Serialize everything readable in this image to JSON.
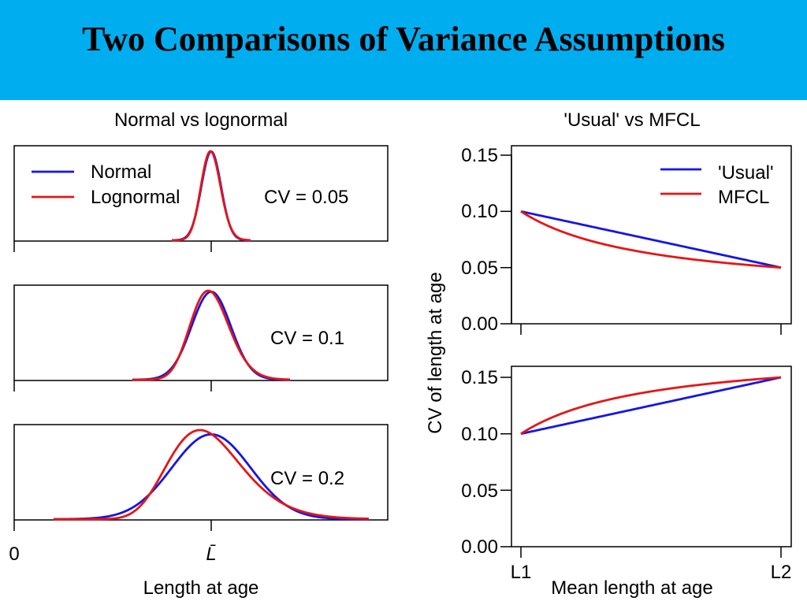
{
  "slide": {
    "title": "Two Comparisons of Variance Assumptions"
  },
  "colors": {
    "banner": "#00AEEF",
    "series_blue": "#1515E6",
    "series_red": "#E61515"
  },
  "chart_data": [
    {
      "type": "line",
      "id": "left-figure",
      "title": "Normal vs lognormal",
      "xlabel": "Length at age",
      "x_tick_labels": [
        "0",
        "L̄"
      ],
      "legend": [
        "Normal",
        "Lognormal"
      ],
      "legend_position": "top-left",
      "mean_length": 1.0,
      "xlim": [
        0,
        1.95
      ],
      "panels": [
        {
          "label": "CV = 0.05",
          "cv": 0.05
        },
        {
          "label": "CV = 0.1",
          "cv": 0.1
        },
        {
          "label": "CV = 0.2",
          "cv": 0.2
        }
      ]
    },
    {
      "type": "line",
      "id": "right-figure",
      "title": "'Usual' vs MFCL",
      "xlabel": "Mean length at age",
      "ylabel": "CV of length at age",
      "x_tick_labels": [
        "L1",
        "L2"
      ],
      "legend": [
        "'Usual'",
        "MFCL"
      ],
      "legend_position": "top-right",
      "ylim": [
        0,
        0.15
      ],
      "y_ticks": [
        "0.00",
        "0.05",
        "0.10",
        "0.15"
      ],
      "panels": [
        {
          "cv1": 0.1,
          "cv2": 0.05
        },
        {
          "cv1": 0.1,
          "cv2": 0.15
        }
      ]
    }
  ]
}
